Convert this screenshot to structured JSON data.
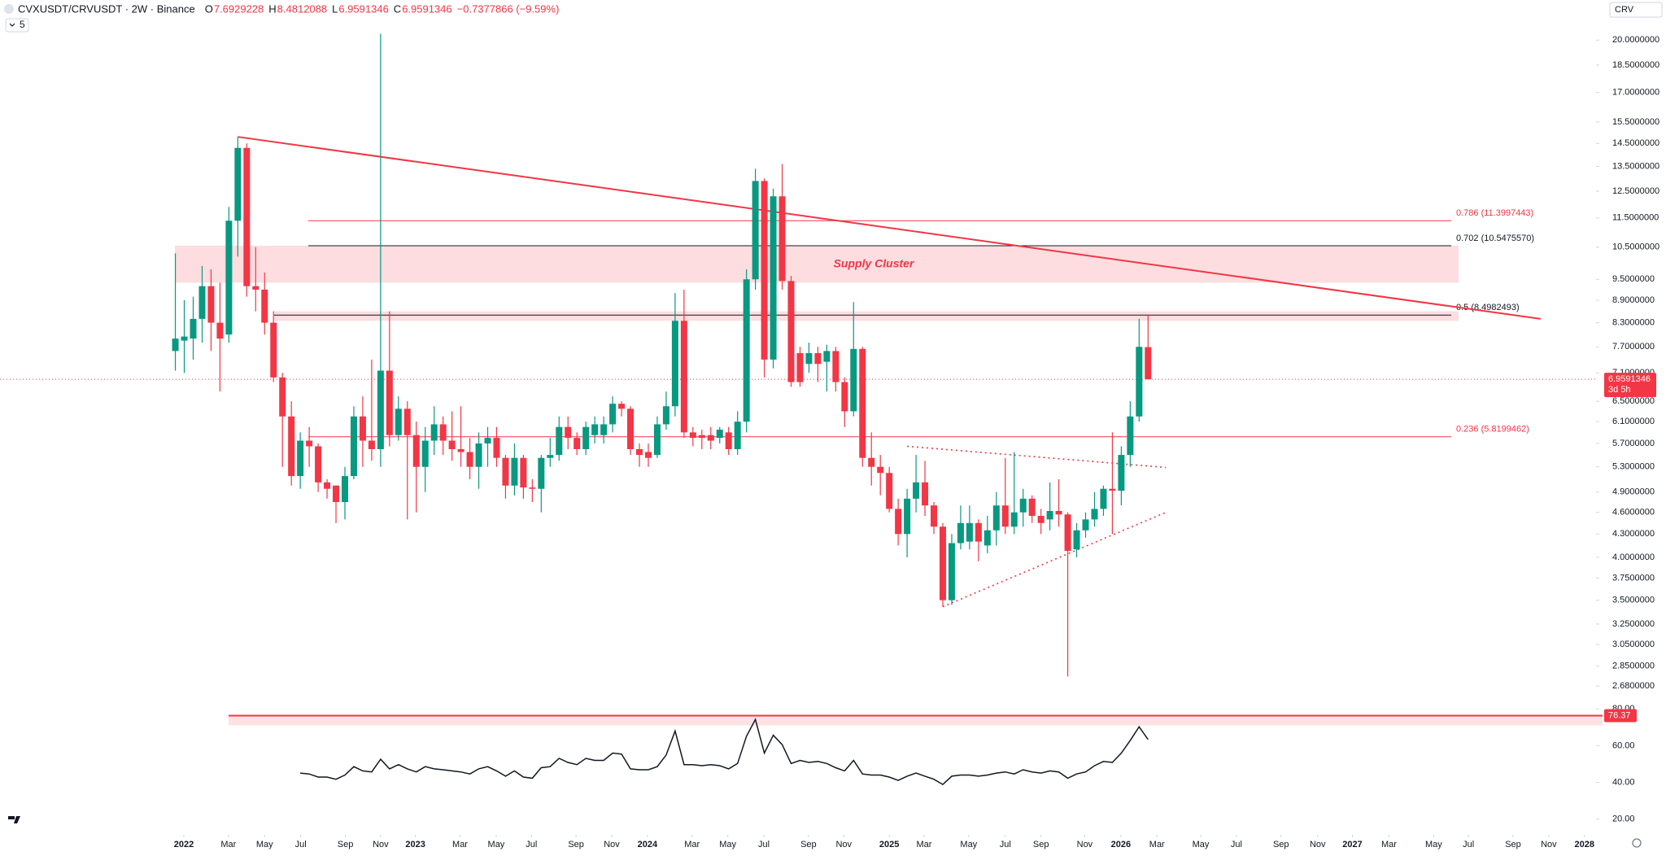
{
  "header": {
    "symbol": "CVXUSDT/CRVUSDT · 2W · Binance",
    "fields": [
      {
        "key": "O",
        "value": "7.6929228"
      },
      {
        "key": "H",
        "value": "8.4812088"
      },
      {
        "key": "L",
        "value": "6.9591346"
      },
      {
        "key": "C",
        "value": "6.9591346"
      }
    ],
    "change": "−0.7377866 (−9.59%)",
    "indicators_badge": "5",
    "search": "CRV"
  },
  "chart_data": [
    {
      "type": "candlestick",
      "log_scale": true,
      "up_color": "#089981",
      "down_color": "#f23645",
      "xlim": [
        -19.65,
        159.2
      ],
      "xticks": [
        {
          "value": 0.95,
          "label": "2022"
        },
        {
          "value": 5.95,
          "label": "Mar"
        },
        {
          "value": 10,
          "label": "May"
        },
        {
          "value": 14.05,
          "label": "Jul"
        },
        {
          "value": 19.05,
          "label": "Sep"
        },
        {
          "value": 23,
          "label": "Nov"
        },
        {
          "value": 26.9,
          "label": "2023"
        },
        {
          "value": 31.9,
          "label": "Mar"
        },
        {
          "value": 35.95,
          "label": "May"
        },
        {
          "value": 39.9,
          "label": "Jul"
        },
        {
          "value": 44.9,
          "label": "Sep"
        },
        {
          "value": 48.9,
          "label": "Nov"
        },
        {
          "value": 52.9,
          "label": "2024"
        },
        {
          "value": 57.9,
          "label": "Mar"
        },
        {
          "value": 61.9,
          "label": "May"
        },
        {
          "value": 65.95,
          "label": "Jul"
        },
        {
          "value": 70.95,
          "label": "Sep"
        },
        {
          "value": 74.9,
          "label": "Nov"
        },
        {
          "value": 80,
          "label": "2025"
        },
        {
          "value": 83.9,
          "label": "Mar"
        },
        {
          "value": 88.9,
          "label": "May"
        },
        {
          "value": 93,
          "label": "Jul"
        },
        {
          "value": 97,
          "label": "Sep"
        },
        {
          "value": 101.9,
          "label": "Nov"
        },
        {
          "value": 105.95,
          "label": "2026"
        },
        {
          "value": 110,
          "label": "Mar"
        },
        {
          "value": 114.9,
          "label": "May"
        },
        {
          "value": 118.9,
          "label": "Jul"
        },
        {
          "value": 123.9,
          "label": "Sep"
        },
        {
          "value": 128,
          "label": "Nov"
        },
        {
          "value": 131.9,
          "label": "2027"
        },
        {
          "value": 136,
          "label": "Mar"
        },
        {
          "value": 141,
          "label": "May"
        },
        {
          "value": 144.9,
          "label": "Jul"
        },
        {
          "value": 149.9,
          "label": "Sep"
        },
        {
          "value": 153.9,
          "label": "Nov"
        },
        {
          "value": 157.9,
          "label": "2028"
        }
      ],
      "ylim": [
        2.6,
        21
      ],
      "yticks": [
        {
          "value": 20,
          "label": "20.0000000"
        },
        {
          "value": 18.5,
          "label": "18.5000000"
        },
        {
          "value": 17,
          "label": "17.0000000"
        },
        {
          "value": 15.5,
          "label": "15.5000000"
        },
        {
          "value": 14.5,
          "label": "14.5000000"
        },
        {
          "value": 13.5,
          "label": "13.5000000"
        },
        {
          "value": 12.5,
          "label": "12.5000000"
        },
        {
          "value": 11.5,
          "label": "11.5000000"
        },
        {
          "value": 10.5,
          "label": "10.5000000"
        },
        {
          "value": 9.5,
          "label": "9.5000000"
        },
        {
          "value": 8.9,
          "label": "8.9000000"
        },
        {
          "value": 8.3,
          "label": "8.3000000"
        },
        {
          "value": 7.7,
          "label": "7.7000000"
        },
        {
          "value": 7.1,
          "label": "7.1000000"
        },
        {
          "value": 6.5,
          "label": "6.5000000"
        },
        {
          "value": 6.1,
          "label": "6.1000000"
        },
        {
          "value": 5.7,
          "label": "5.7000000"
        },
        {
          "value": 5.3,
          "label": "5.3000000"
        },
        {
          "value": 4.9,
          "label": "4.9000000"
        },
        {
          "value": 4.6,
          "label": "4.6000000"
        },
        {
          "value": 4.3,
          "label": "4.3000000"
        },
        {
          "value": 4.0,
          "label": "4.0000000"
        },
        {
          "value": 3.75,
          "label": "3.7500000"
        },
        {
          "value": 3.5,
          "label": "3.5000000"
        },
        {
          "value": 3.25,
          "label": "3.2500000"
        },
        {
          "value": 3.05,
          "label": "3.0500000"
        },
        {
          "value": 2.85,
          "label": "2.8500000"
        },
        {
          "value": 2.68,
          "label": "2.6800000"
        }
      ],
      "candles": [
        [
          7.6,
          10.3,
          7.15,
          7.9
        ],
        [
          7.85,
          8.9,
          7.1,
          7.95
        ],
        [
          7.9,
          9.0,
          7.4,
          8.4
        ],
        [
          8.4,
          9.9,
          7.8,
          9.3
        ],
        [
          9.3,
          9.8,
          7.6,
          8.3
        ],
        [
          8.3,
          9.4,
          6.7,
          7.9
        ],
        [
          8.0,
          11.9,
          7.8,
          11.4
        ],
        [
          11.4,
          14.8,
          10.2,
          14.3
        ],
        [
          14.3,
          14.5,
          9.0,
          9.3
        ],
        [
          9.3,
          10.5,
          8.6,
          9.2
        ],
        [
          9.2,
          9.7,
          8.0,
          8.3
        ],
        [
          8.3,
          8.6,
          6.9,
          7.0
        ],
        [
          7.0,
          7.1,
          5.3,
          6.2
        ],
        [
          6.2,
          6.5,
          5.0,
          5.15
        ],
        [
          5.15,
          5.9,
          4.95,
          5.75
        ],
        [
          5.75,
          6.0,
          5.3,
          5.65
        ],
        [
          5.65,
          5.7,
          4.9,
          5.05
        ],
        [
          5.05,
          5.1,
          4.8,
          4.95
        ],
        [
          5.0,
          5.0,
          4.45,
          4.75
        ],
        [
          4.75,
          5.3,
          4.5,
          5.15
        ],
        [
          5.15,
          6.4,
          5.1,
          6.2
        ],
        [
          6.2,
          6.6,
          5.3,
          5.75
        ],
        [
          5.75,
          7.4,
          5.4,
          5.6
        ],
        [
          5.6,
          20.4,
          5.3,
          7.15
        ],
        [
          7.15,
          8.6,
          5.65,
          5.85
        ],
        [
          5.85,
          6.6,
          5.75,
          6.35
        ],
        [
          6.35,
          6.5,
          4.5,
          5.85
        ],
        [
          5.85,
          6.1,
          4.6,
          5.3
        ],
        [
          5.3,
          6.0,
          4.9,
          5.75
        ],
        [
          5.75,
          6.4,
          5.5,
          6.05
        ],
        [
          6.05,
          6.2,
          5.5,
          5.75
        ],
        [
          5.75,
          6.3,
          5.4,
          5.6
        ],
        [
          5.6,
          6.4,
          5.3,
          5.55
        ],
        [
          5.55,
          5.8,
          5.1,
          5.3
        ],
        [
          5.3,
          5.9,
          4.95,
          5.7
        ],
        [
          5.7,
          6.0,
          5.3,
          5.8
        ],
        [
          5.8,
          6.0,
          5.3,
          5.45
        ],
        [
          5.45,
          5.5,
          4.8,
          5.0
        ],
        [
          5.0,
          5.7,
          4.85,
          5.45
        ],
        [
          5.45,
          5.5,
          4.8,
          4.97
        ],
        [
          4.97,
          5.1,
          4.75,
          4.95
        ],
        [
          4.95,
          5.5,
          4.6,
          5.45
        ],
        [
          5.45,
          5.8,
          5.3,
          5.5
        ],
        [
          5.5,
          6.2,
          5.4,
          6.0
        ],
        [
          6.0,
          6.2,
          5.6,
          5.8
        ],
        [
          5.8,
          5.9,
          5.5,
          5.6
        ],
        [
          5.6,
          6.1,
          5.5,
          6.0
        ],
        [
          5.85,
          6.2,
          5.7,
          6.05
        ],
        [
          5.85,
          6.2,
          5.7,
          6.05
        ],
        [
          6.05,
          6.6,
          5.9,
          6.45
        ],
        [
          6.45,
          6.5,
          6.2,
          6.35
        ],
        [
          6.35,
          6.4,
          5.5,
          5.6
        ],
        [
          5.6,
          5.7,
          5.3,
          5.5
        ],
        [
          5.55,
          5.7,
          5.3,
          5.45
        ],
        [
          5.5,
          6.2,
          5.45,
          6.05
        ],
        [
          6.05,
          6.7,
          5.95,
          6.4
        ],
        [
          6.4,
          9.1,
          6.2,
          8.35
        ],
        [
          8.35,
          9.2,
          5.8,
          5.9
        ],
        [
          5.9,
          6.0,
          5.65,
          5.8
        ],
        [
          5.85,
          5.95,
          5.6,
          5.8
        ],
        [
          5.85,
          6.0,
          5.6,
          5.75
        ],
        [
          5.8,
          6.0,
          5.7,
          5.95
        ],
        [
          5.9,
          6.0,
          5.5,
          5.6
        ],
        [
          5.6,
          6.3,
          5.5,
          6.1
        ],
        [
          6.1,
          9.8,
          5.9,
          9.5
        ],
        [
          9.5,
          13.4,
          9.2,
          12.9
        ],
        [
          12.9,
          13.0,
          7.0,
          7.4
        ],
        [
          7.4,
          12.6,
          7.2,
          12.3
        ],
        [
          12.3,
          13.6,
          9.2,
          9.45
        ],
        [
          9.45,
          9.6,
          6.8,
          6.9
        ],
        [
          7.55,
          7.7,
          6.8,
          6.9
        ],
        [
          7.3,
          7.8,
          7.1,
          7.55
        ],
        [
          7.55,
          7.7,
          6.9,
          7.3
        ],
        [
          7.35,
          7.75,
          6.7,
          7.6
        ],
        [
          7.6,
          7.7,
          6.7,
          6.9
        ],
        [
          6.9,
          7.0,
          6.0,
          6.3
        ],
        [
          6.3,
          8.85,
          6.2,
          7.65
        ],
        [
          7.65,
          7.7,
          5.3,
          5.45
        ],
        [
          5.45,
          5.9,
          5.0,
          5.3
        ],
        [
          5.3,
          5.5,
          4.85,
          5.2
        ],
        [
          5.2,
          5.3,
          4.6,
          4.65
        ],
        [
          4.65,
          4.8,
          4.15,
          4.3
        ],
        [
          4.3,
          4.95,
          4.0,
          4.8
        ],
        [
          4.8,
          5.5,
          4.6,
          5.05
        ],
        [
          5.05,
          5.4,
          4.55,
          4.7
        ],
        [
          4.7,
          4.75,
          4.3,
          4.4
        ],
        [
          4.4,
          4.45,
          3.43,
          3.5
        ],
        [
          3.5,
          4.3,
          3.45,
          4.18
        ],
        [
          4.18,
          4.7,
          4.1,
          4.45
        ],
        [
          4.2,
          4.7,
          4.1,
          4.45
        ],
        [
          4.45,
          4.5,
          3.95,
          4.2
        ],
        [
          4.15,
          4.55,
          4.05,
          4.35
        ],
        [
          4.35,
          4.9,
          4.15,
          4.7
        ],
        [
          4.7,
          5.45,
          4.3,
          4.4
        ],
        [
          4.4,
          5.55,
          4.3,
          4.6
        ],
        [
          4.6,
          4.95,
          4.4,
          4.8
        ],
        [
          4.8,
          4.85,
          4.45,
          4.55
        ],
        [
          4.55,
          4.65,
          4.3,
          4.45
        ],
        [
          4.5,
          5.05,
          4.35,
          4.62
        ],
        [
          4.62,
          5.1,
          4.4,
          4.57
        ],
        [
          4.57,
          4.6,
          2.76,
          4.08
        ],
        [
          4.1,
          4.45,
          4.0,
          4.35
        ],
        [
          4.35,
          4.6,
          4.25,
          4.5
        ],
        [
          4.5,
          4.9,
          4.4,
          4.65
        ],
        [
          4.65,
          5.0,
          4.55,
          4.95
        ],
        [
          4.95,
          5.9,
          4.3,
          4.92
        ],
        [
          4.92,
          5.65,
          4.7,
          5.5
        ],
        [
          5.5,
          6.5,
          5.3,
          6.2
        ],
        [
          6.2,
          8.4,
          6.1,
          7.7
        ],
        [
          7.6929228,
          8.4812088,
          6.9591346,
          6.9591346
        ]
      ],
      "last_price": 6.9591346,
      "countdown": "3d 5h",
      "fib_levels": [
        {
          "price": 11.3997443,
          "label": "0.786 (11.3997443)",
          "color": "#f23645"
        },
        {
          "price": 10.547557,
          "label": "0.702 (10.5475570)",
          "color": "#131722"
        },
        {
          "price": 8.4982493,
          "label": "0.5 (8.4982493)",
          "color": "#131722"
        },
        {
          "price": 5.8199462,
          "label": "0.236 (5.8199462)",
          "color": "#f23645"
        }
      ],
      "zones": [
        {
          "label": "Supply Cluster",
          "low": 9.4,
          "high": 10.55
        },
        {
          "low": 8.35,
          "high": 8.6
        }
      ],
      "trendlines": [
        {
          "x": [
            7,
            153
          ],
          "y": [
            14.8,
            8.4
          ],
          "style": "solid"
        },
        {
          "x": [
            82,
            111
          ],
          "y": [
            5.65,
            5.29
          ],
          "style": "dotted"
        },
        {
          "x": [
            86,
            111
          ],
          "y": [
            3.43,
            4.6
          ],
          "style": "dotted"
        }
      ]
    },
    {
      "type": "line",
      "color": "#131722",
      "ylim": [
        15,
        85
      ],
      "yticks": [
        {
          "value": 80,
          "label": "80.00"
        },
        {
          "value": 60,
          "label": "60.00"
        },
        {
          "value": 40,
          "label": "40.00"
        },
        {
          "value": 20,
          "label": "20.00"
        }
      ],
      "values": [
        null,
        null,
        null,
        null,
        null,
        null,
        null,
        null,
        null,
        null,
        null,
        null,
        null,
        null,
        45.1,
        44.6,
        42.9,
        42.9,
        41.7,
        44,
        48.6,
        46.3,
        45.7,
        52.6,
        47.4,
        49.7,
        47.4,
        45.7,
        48.6,
        47.4,
        46.9,
        46.3,
        45.7,
        44.6,
        47.4,
        48.6,
        46.3,
        43.4,
        46.3,
        42.9,
        42.3,
        48,
        48.6,
        53.1,
        50.9,
        49.7,
        53.1,
        52,
        52,
        56,
        55.4,
        47.4,
        46.9,
        46.9,
        48.6,
        54.9,
        68,
        49.7,
        49.7,
        49.1,
        49.7,
        49.1,
        47.4,
        50.3,
        65.1,
        74.3,
        56,
        65.7,
        60.6,
        50.3,
        52,
        50.9,
        51.4,
        50.3,
        48,
        46.3,
        52,
        44.6,
        44,
        44,
        42.9,
        41.1,
        43.4,
        45.1,
        43.4,
        41.7,
        38.9,
        43.4,
        44,
        44,
        43.4,
        44,
        45.1,
        45.7,
        44.6,
        46.9,
        45.7,
        45.1,
        46.3,
        45.7,
        42.3,
        44.6,
        45.7,
        49.1,
        51.4,
        50.9,
        56,
        62.9,
        70.3,
        63.4
      ],
      "level": 76.37,
      "level_color": "#f23645"
    }
  ]
}
